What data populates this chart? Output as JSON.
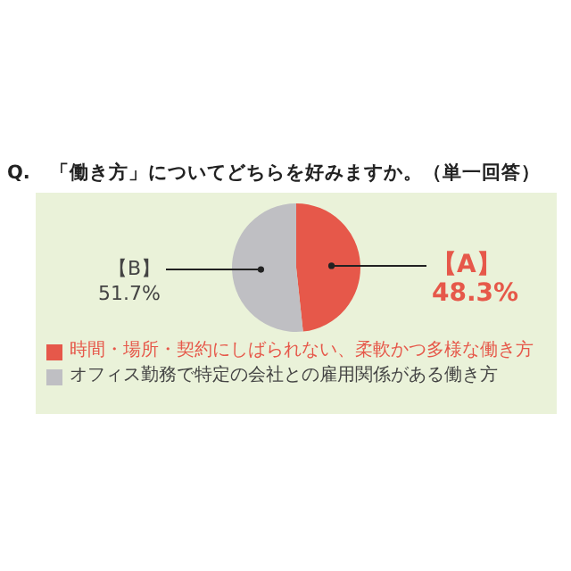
{
  "chart_data": {
    "type": "pie",
    "title": "Q.　「働き方」についてどちらを好みますか。（単一回答）",
    "categories": [
      "時間・場所・契約にしばられない、柔軟かつ多様な働き方",
      "オフィス勤務で特定の会社との雇用関係がある働き方"
    ],
    "values": [
      48.3,
      51.7
    ],
    "colors": [
      "#e6584a",
      "#bfbfc3"
    ],
    "value_labels": [
      "48.3%",
      "51.7%"
    ],
    "annotations": [
      "【A】",
      "【B】"
    ],
    "legend": "bottom"
  }
}
